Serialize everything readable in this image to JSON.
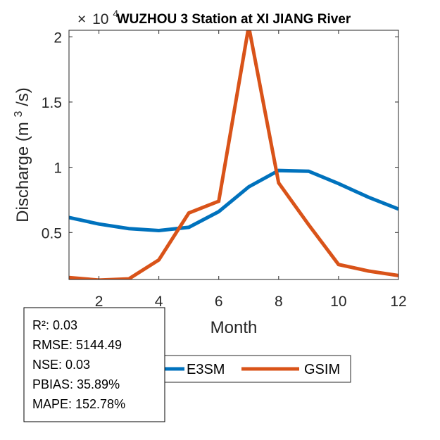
{
  "chart_data": {
    "type": "line",
    "title": "WUZHOU 3  Station at  XI JIANG  River",
    "xlabel": "Month",
    "ylabel_main": "Discharge (m",
    "ylabel_sup": "3",
    "ylabel_tail": "/s)",
    "exponent_prefix": "×",
    "exponent_base": "10",
    "exponent_power": "4",
    "xlim": [
      1,
      12
    ],
    "ylim": [
      0.14,
      2.05
    ],
    "xticks": [
      2,
      4,
      6,
      8,
      10,
      12
    ],
    "xtick_labels": [
      "2",
      "4",
      "6",
      "8",
      "10",
      "12"
    ],
    "yticks": [
      0.5,
      1,
      1.5,
      2
    ],
    "ytick_labels": [
      "0.5",
      "1",
      "1.5",
      "2"
    ],
    "x": [
      1,
      2,
      3,
      4,
      5,
      6,
      7,
      8,
      9,
      10,
      11,
      12
    ],
    "series": [
      {
        "name": "E3SM",
        "color": "#0072BD",
        "values": [
          0.615,
          0.565,
          0.53,
          0.515,
          0.54,
          0.66,
          0.85,
          0.975,
          0.97,
          0.875,
          0.77,
          0.68
        ]
      },
      {
        "name": "GSIM",
        "color": "#D95319",
        "values": [
          0.155,
          0.135,
          0.145,
          0.29,
          0.65,
          0.74,
          2.08,
          0.88,
          0.56,
          0.255,
          0.205,
          0.17
        ]
      }
    ],
    "legend": [
      "E3SM",
      "GSIM"
    ],
    "legend_location": "bottom-right",
    "grid": false
  },
  "stats": {
    "r2": "R²: 0.03",
    "rmse": "RMSE: 5144.49",
    "nse": "NSE: 0.03",
    "pbias": "PBIAS: 35.89%",
    "mape": "MAPE: 152.78%"
  }
}
